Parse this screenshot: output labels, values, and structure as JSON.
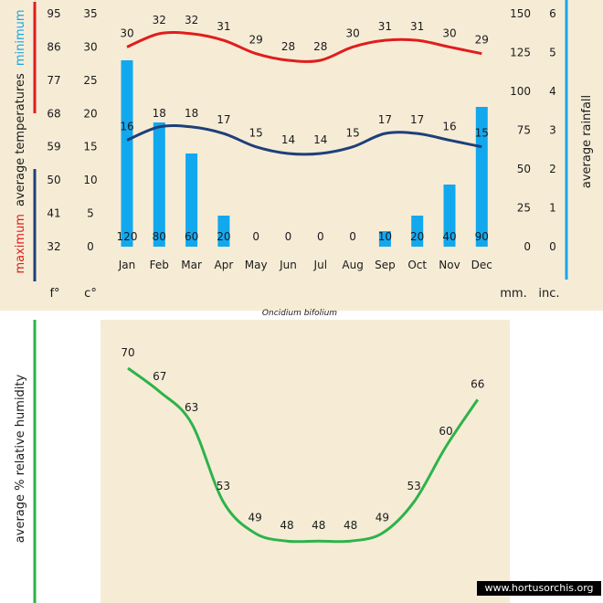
{
  "colors": {
    "max_line": "#e11d1d",
    "min_line": "#1f3f7a",
    "bars": "#12a8ee",
    "humidity_line": "#2db34a",
    "rain_axis_line": "#1aa7e6",
    "text": "#1a1a1a"
  },
  "chart_data": [
    {
      "type": "bar+line",
      "title": "Oncidium bifolium",
      "categories": [
        "Jan",
        "Feb",
        "Mar",
        "Apr",
        "May",
        "Jun",
        "Jul",
        "Aug",
        "Sep",
        "Oct",
        "Nov",
        "Dec"
      ],
      "series": [
        {
          "name": "maximum",
          "axis": "celsius",
          "kind": "line",
          "values": [
            30,
            32,
            32,
            31,
            29,
            28,
            28,
            30,
            31,
            31,
            30,
            29
          ]
        },
        {
          "name": "minimum",
          "axis": "celsius",
          "kind": "line",
          "values": [
            16,
            18,
            18,
            17,
            15,
            14,
            14,
            15,
            17,
            17,
            16,
            15
          ]
        },
        {
          "name": "average rainfall",
          "axis": "mm",
          "kind": "bar",
          "values": [
            120,
            80,
            60,
            20,
            0,
            0,
            0,
            0,
            10,
            20,
            40,
            90
          ]
        }
      ],
      "axes": {
        "fahrenheit": {
          "ticks": [
            "95",
            "86",
            "77",
            "68",
            "59",
            "50",
            "41",
            "32"
          ],
          "unit_label": "f°"
        },
        "celsius": {
          "range": [
            0,
            35
          ],
          "ticks": [
            "35",
            "30",
            "25",
            "20",
            "15",
            "10",
            "5",
            "0"
          ],
          "unit_label": "c°"
        },
        "mm": {
          "range": [
            0,
            150
          ],
          "ticks": [
            "150",
            "125",
            "100",
            "75",
            "50",
            "25",
            "0"
          ],
          "unit_label": "mm."
        },
        "inches": {
          "ticks": [
            "6",
            "5",
            "4",
            "3",
            "2",
            "1",
            "0"
          ],
          "unit_label": "inc."
        }
      },
      "left_title": {
        "maximum": "maximum",
        "average_temperatures": "average  temperatures",
        "minimum": "minimum"
      },
      "right_title": "average rainfall"
    },
    {
      "type": "line",
      "categories": [
        "Jan",
        "Feb",
        "Mar",
        "Apr",
        "May",
        "Jun",
        "Jul",
        "Aug",
        "Sep",
        "Oct",
        "Nov",
        "Dec"
      ],
      "series": [
        {
          "name": "average % relative humidity",
          "values": [
            70,
            67,
            63,
            53,
            49,
            48,
            48,
            48,
            49,
            53,
            60,
            66
          ]
        }
      ],
      "ylabel": "average %  relative humidity"
    }
  ],
  "watermark": "www.hortusorchis.org"
}
